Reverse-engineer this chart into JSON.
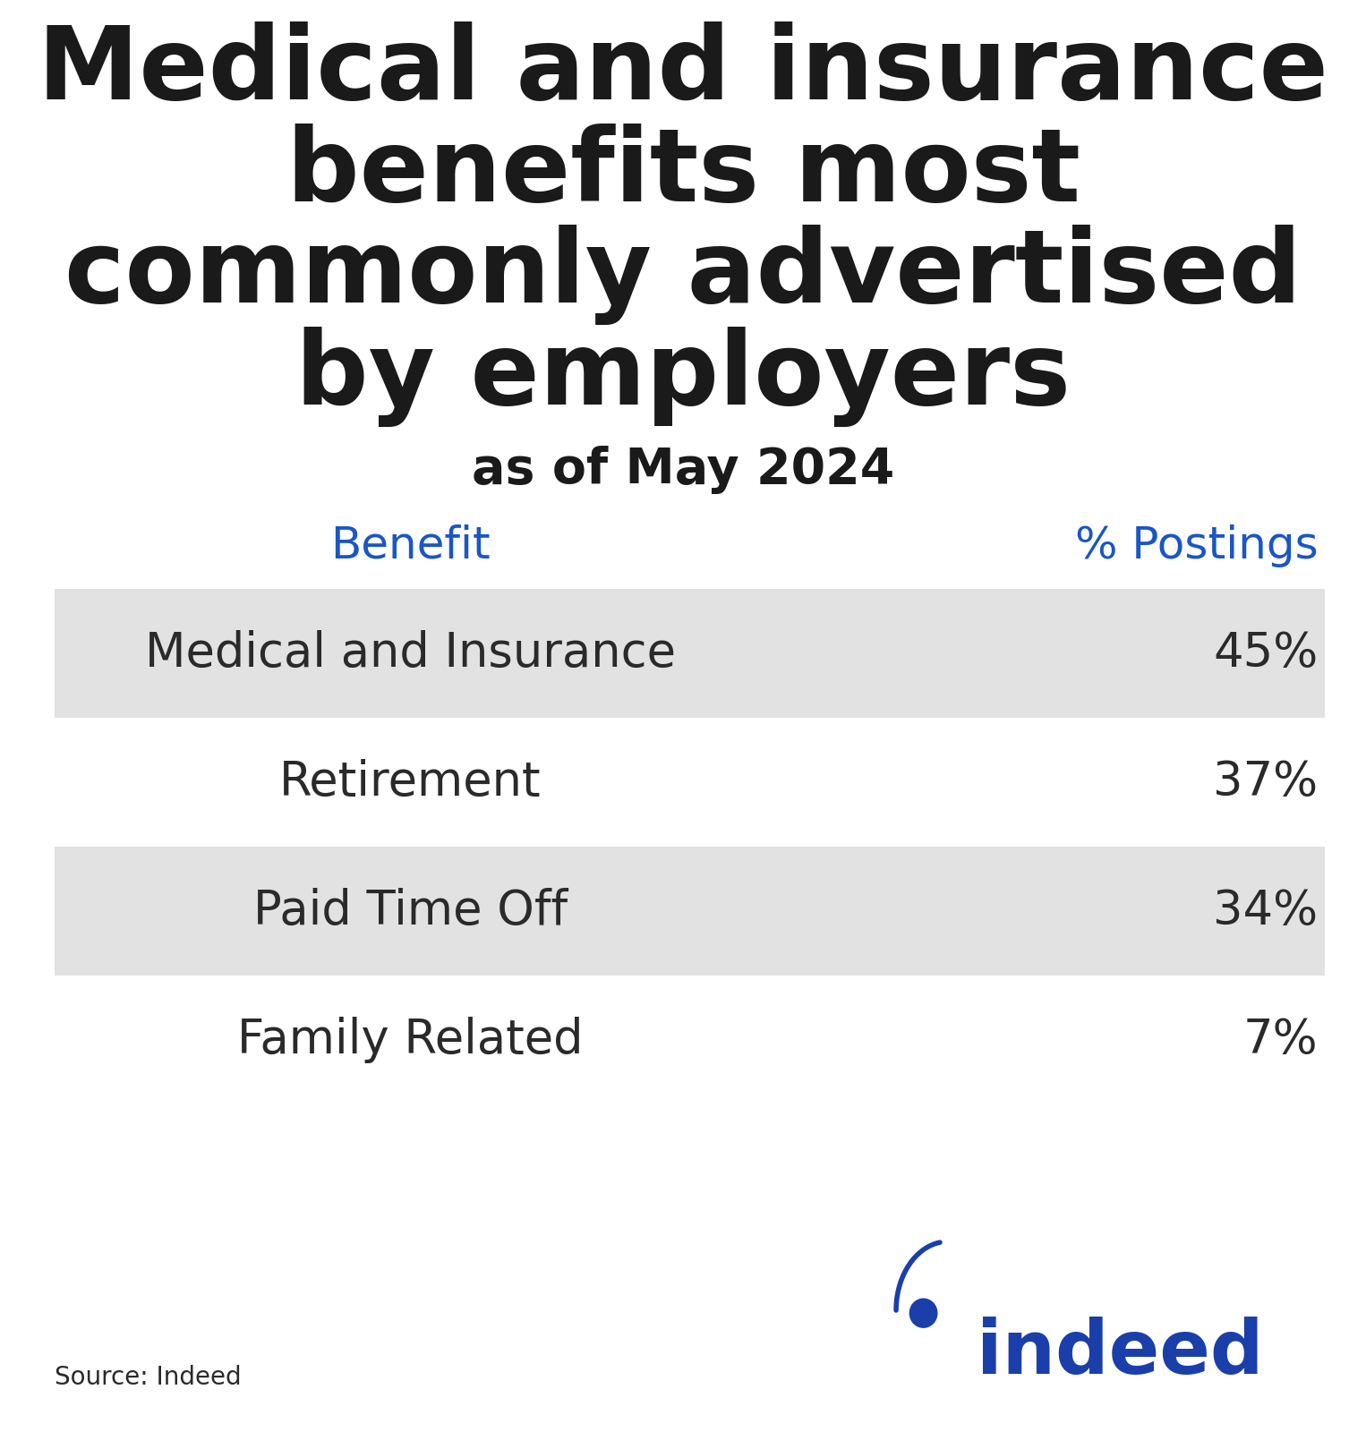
{
  "title_lines": [
    "Medical and insurance",
    "benefits most",
    "commonly advertised",
    "by employers"
  ],
  "subtitle": "as of May 2024",
  "col_header_benefit": "Benefit",
  "col_header_postings": "% Postings",
  "header_color": "#1a56c4",
  "title_color": "#1a1a1a",
  "subtitle_color": "#1a1a1a",
  "table_data": [
    {
      "benefit": "Medical and Insurance",
      "postings": "45%",
      "shaded": true
    },
    {
      "benefit": "Retirement",
      "postings": "37%",
      "shaded": false
    },
    {
      "benefit": "Paid Time Off",
      "postings": "34%",
      "shaded": true
    },
    {
      "benefit": "Family Related",
      "postings": "7%",
      "shaded": false
    }
  ],
  "shaded_color": "#e2e2e2",
  "text_color": "#2a2a2a",
  "source_text": "Source: Indeed",
  "background_color": "#ffffff",
  "indeed_color": "#1a3faa",
  "title_fontsize": 82,
  "subtitle_fontsize": 40,
  "header_fontsize": 36,
  "row_fontsize": 38
}
